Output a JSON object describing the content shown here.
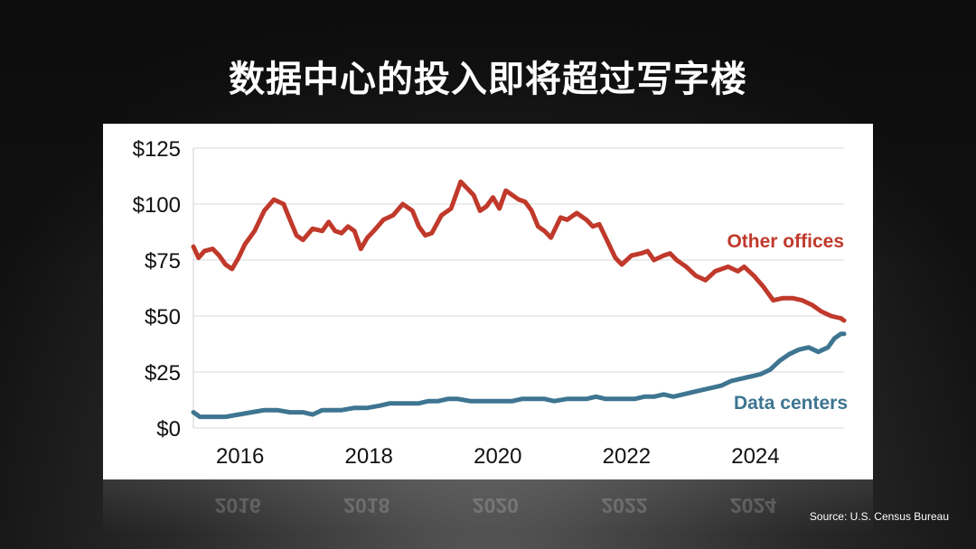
{
  "title": "数据中心的投入即将超过写字楼",
  "source": "Source: U.S. Census Bureau",
  "chart_data": {
    "type": "line",
    "title": "数据中心的投入即将超过写字楼",
    "xlabel": "",
    "ylabel": "",
    "x_ticks": [
      "2016",
      "2018",
      "2020",
      "2022",
      "2024"
    ],
    "y_ticks": [
      "$0",
      "$25",
      "$50",
      "$75",
      "$100",
      "$125"
    ],
    "xlim": [
      2015.5,
      2025.6
    ],
    "ylim": [
      0,
      125
    ],
    "grid": true,
    "colors": {
      "Other offices": "#c0392b",
      "Data centers": "#3e7591"
    },
    "series": [
      {
        "name": "Other offices",
        "x": [
          2015.5,
          2015.58,
          2015.67,
          2015.8,
          2015.9,
          2016.0,
          2016.1,
          2016.2,
          2016.3,
          2016.45,
          2016.6,
          2016.75,
          2016.9,
          2017.0,
          2017.1,
          2017.2,
          2017.35,
          2017.5,
          2017.6,
          2017.7,
          2017.8,
          2017.9,
          2018.0,
          2018.1,
          2018.2,
          2018.3,
          2018.45,
          2018.6,
          2018.75,
          2018.9,
          2019.0,
          2019.1,
          2019.2,
          2019.35,
          2019.5,
          2019.65,
          2019.75,
          2019.85,
          2019.95,
          2020.05,
          2020.15,
          2020.25,
          2020.35,
          2020.45,
          2020.55,
          2020.65,
          2020.75,
          2020.85,
          2020.95,
          2021.05,
          2021.2,
          2021.3,
          2021.45,
          2021.6,
          2021.7,
          2021.8,
          2021.95,
          2022.05,
          2022.15,
          2022.3,
          2022.45,
          2022.55,
          2022.65,
          2022.8,
          2022.9,
          2023.0,
          2023.15,
          2023.3,
          2023.45,
          2023.6,
          2023.7,
          2023.8,
          2023.95,
          2024.05,
          2024.2,
          2024.35,
          2024.5,
          2024.65,
          2024.8,
          2024.95,
          2025.1,
          2025.25,
          2025.4,
          2025.55,
          2025.6
        ],
        "values": [
          81,
          76,
          79,
          80,
          77,
          73,
          71,
          76,
          82,
          88,
          97,
          102,
          100,
          93,
          86,
          84,
          89,
          88,
          92,
          88,
          87,
          90,
          88,
          80,
          85,
          88,
          93,
          95,
          100,
          97,
          90,
          86,
          87,
          95,
          98,
          110,
          107,
          104,
          97,
          99,
          103,
          98,
          106,
          104,
          102,
          101,
          97,
          90,
          88,
          85,
          94,
          93,
          96,
          93,
          90,
          91,
          82,
          76,
          73,
          77,
          78,
          79,
          75,
          77,
          78,
          75,
          72,
          68,
          66,
          70,
          71,
          72,
          70,
          72,
          68,
          63,
          57,
          58,
          58,
          57,
          55,
          52,
          50,
          49,
          48
        ]
      },
      {
        "name": "Data centers",
        "x": [
          2015.5,
          2015.6,
          2015.8,
          2016.0,
          2016.2,
          2016.4,
          2016.6,
          2016.8,
          2017.0,
          2017.2,
          2017.35,
          2017.5,
          2017.65,
          2017.8,
          2018.0,
          2018.2,
          2018.4,
          2018.55,
          2018.7,
          2018.85,
          2019.0,
          2019.15,
          2019.3,
          2019.45,
          2019.6,
          2019.8,
          2020.0,
          2020.15,
          2020.3,
          2020.45,
          2020.6,
          2020.8,
          2020.95,
          2021.1,
          2021.3,
          2021.45,
          2021.6,
          2021.75,
          2021.9,
          2022.05,
          2022.2,
          2022.35,
          2022.5,
          2022.65,
          2022.8,
          2022.95,
          2023.1,
          2023.25,
          2023.4,
          2023.55,
          2023.7,
          2023.85,
          2024.0,
          2024.15,
          2024.3,
          2024.45,
          2024.6,
          2024.75,
          2024.9,
          2025.05,
          2025.2,
          2025.35,
          2025.45,
          2025.55,
          2025.6
        ],
        "values": [
          7,
          5,
          5,
          5,
          6,
          7,
          8,
          8,
          7,
          7,
          6,
          8,
          8,
          8,
          9,
          9,
          10,
          11,
          11,
          11,
          11,
          12,
          12,
          13,
          13,
          12,
          12,
          12,
          12,
          12,
          13,
          13,
          13,
          12,
          13,
          13,
          13,
          14,
          13,
          13,
          13,
          13,
          14,
          14,
          15,
          14,
          15,
          16,
          17,
          18,
          19,
          21,
          22,
          23,
          24,
          26,
          30,
          33,
          35,
          36,
          34,
          36,
          40,
          42,
          42
        ]
      }
    ]
  }
}
